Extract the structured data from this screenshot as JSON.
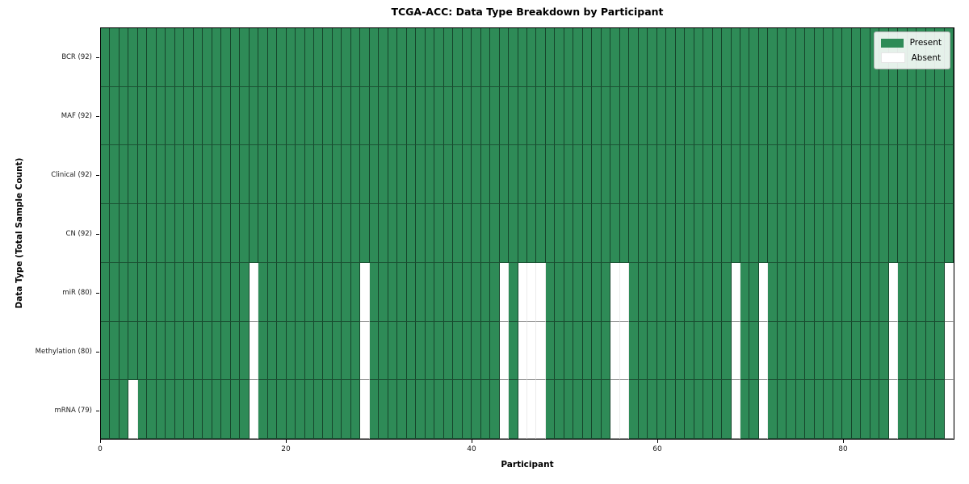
{
  "chart_data": {
    "type": "heatmap",
    "title": "TCGA-ACC: Data Type Breakdown by Participant",
    "xlabel": "Participant",
    "ylabel": "Data Type (Total Sample Count)",
    "n_participants": 92,
    "xlim": [
      0,
      92
    ],
    "x_ticks": [
      0,
      20,
      40,
      60,
      80
    ],
    "rows": [
      {
        "label": "BCR (92)",
        "total": 92,
        "absent_participants": []
      },
      {
        "label": "MAF (92)",
        "total": 92,
        "absent_participants": []
      },
      {
        "label": "Clinical (92)",
        "total": 92,
        "absent_participants": []
      },
      {
        "label": "CN (92)",
        "total": 92,
        "absent_participants": []
      },
      {
        "label": "miR (80)",
        "total": 80,
        "absent_participants": [
          16,
          28,
          43,
          45,
          46,
          47,
          55,
          56,
          68,
          71,
          85,
          91
        ]
      },
      {
        "label": "Methylation (80)",
        "total": 80,
        "absent_participants": [
          16,
          28,
          43,
          45,
          46,
          47,
          55,
          56,
          68,
          71,
          85,
          91
        ]
      },
      {
        "label": "mRNA (79)",
        "total": 79,
        "absent_participants": [
          3,
          16,
          28,
          43,
          45,
          46,
          47,
          55,
          56,
          68,
          71,
          85,
          91
        ]
      }
    ],
    "legend": {
      "position": "upper right",
      "items": [
        {
          "label": "Present",
          "color": "#2e8b57"
        },
        {
          "label": "Absent",
          "color": "#ffffff"
        }
      ]
    },
    "colors": {
      "present": "#2e8b57",
      "absent": "#ffffff",
      "cell_edge": "#000000",
      "plot_border": "#000000",
      "legend_border": "#b5b5b5"
    }
  }
}
